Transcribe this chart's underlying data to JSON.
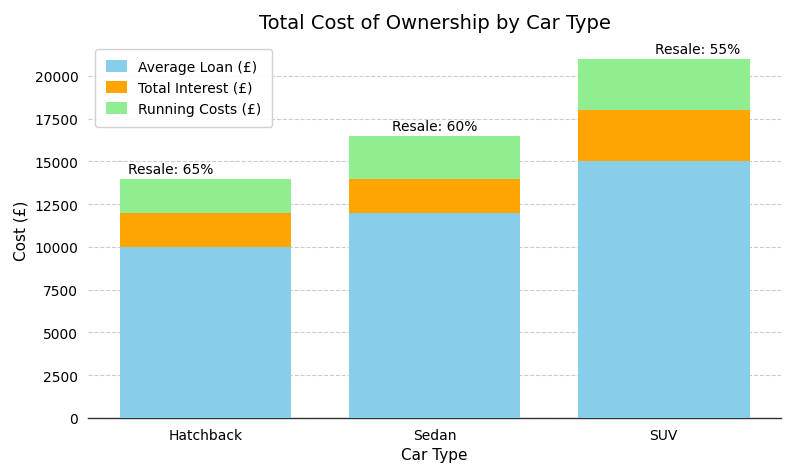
{
  "title": "Total Cost of Ownership by Car Type",
  "xlabel": "Car Type",
  "ylabel": "Cost (£)",
  "categories": [
    "Hatchback",
    "Sedan",
    "SUV"
  ],
  "average_loan": [
    10000,
    12000,
    15000
  ],
  "total_interest": [
    2000,
    2000,
    3000
  ],
  "running_costs": [
    2000,
    2500,
    3000
  ],
  "resale_labels": [
    "Resale: 65%",
    "Resale: 60%",
    "Resale: 55%"
  ],
  "colors": {
    "loan": "#87CEEB",
    "interest": "#FFA500",
    "running": "#90EE90"
  },
  "legend_labels": [
    "Average Loan (£)",
    "Total Interest (£)",
    "Running Costs (£)"
  ],
  "ylim": [
    0,
    22000
  ],
  "bar_width": 0.75,
  "background_color": "#ffffff",
  "grid_color": "#cccccc",
  "title_fontsize": 14,
  "axis_label_fontsize": 11,
  "tick_fontsize": 10,
  "legend_fontsize": 10,
  "annotation_fontsize": 10
}
